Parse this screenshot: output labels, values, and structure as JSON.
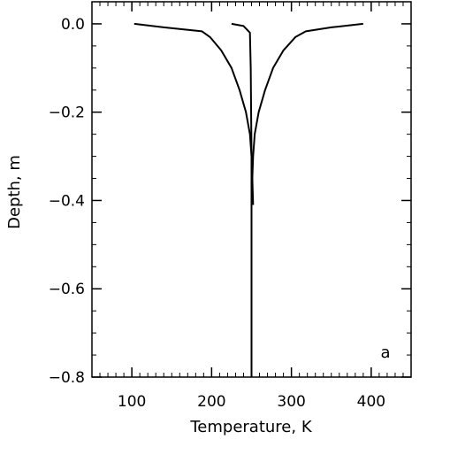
{
  "chart_data": {
    "type": "line",
    "title": "",
    "xlabel": "Temperature, K",
    "ylabel": "Depth, m",
    "xlim": [
      50,
      450
    ],
    "ylim": [
      -0.8,
      0.05
    ],
    "xticks": [
      100,
      200,
      300,
      400
    ],
    "xtick_labels": [
      "100",
      "200",
      "300",
      "400"
    ],
    "yticks": [
      0.0,
      -0.2,
      -0.4,
      -0.6,
      -0.8
    ],
    "ytick_labels": [
      "0.0",
      "−0.2",
      "−0.4",
      "−0.6",
      "−0.8"
    ],
    "annotation": "a",
    "series": [
      {
        "x": [
          103,
          140,
          188,
          198,
          212,
          225,
          235,
          243,
          248,
          250,
          251,
          252
        ],
        "y": [
          0.0,
          -0.008,
          -0.017,
          -0.03,
          -0.06,
          -0.1,
          -0.15,
          -0.2,
          -0.25,
          -0.3,
          -0.35,
          -0.41
        ]
      },
      {
        "x": [
          390,
          350,
          318,
          305,
          290,
          277,
          267,
          259,
          254,
          252,
          251,
          250
        ],
        "y": [
          0.0,
          -0.008,
          -0.017,
          -0.03,
          -0.06,
          -0.1,
          -0.15,
          -0.2,
          -0.25,
          -0.3,
          -0.35,
          -0.41
        ]
      },
      {
        "x": [
          225,
          240,
          248,
          249,
          250,
          250,
          250
        ],
        "y": [
          0.0,
          -0.005,
          -0.02,
          -0.1,
          -0.3,
          -0.5,
          -0.8
        ]
      }
    ]
  }
}
